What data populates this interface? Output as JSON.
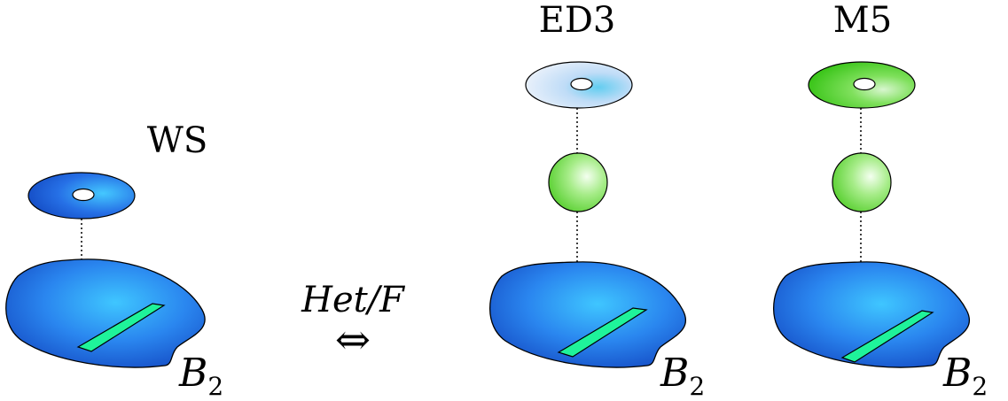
{
  "diagram": {
    "ws": {
      "title": "WS",
      "base_symbol": "B",
      "base_subscript": "2"
    },
    "relation": {
      "label": "Het/F",
      "arrow": "⇔"
    },
    "ed3": {
      "title": "ED3",
      "base_symbol": "B",
      "base_subscript": "2"
    },
    "m5": {
      "title": "M5",
      "base_symbol": "B",
      "base_subscript": "2"
    }
  },
  "colors": {
    "base_blue": "#1f66e0",
    "base_blue_light": "#3fc0ff",
    "brane_green": "#22ee99",
    "sphere_green": "#7ddc5a",
    "torus_ws": "#2060e0",
    "torus_ed3": "#c8dcff",
    "torus_m5": "#3ec91a"
  }
}
